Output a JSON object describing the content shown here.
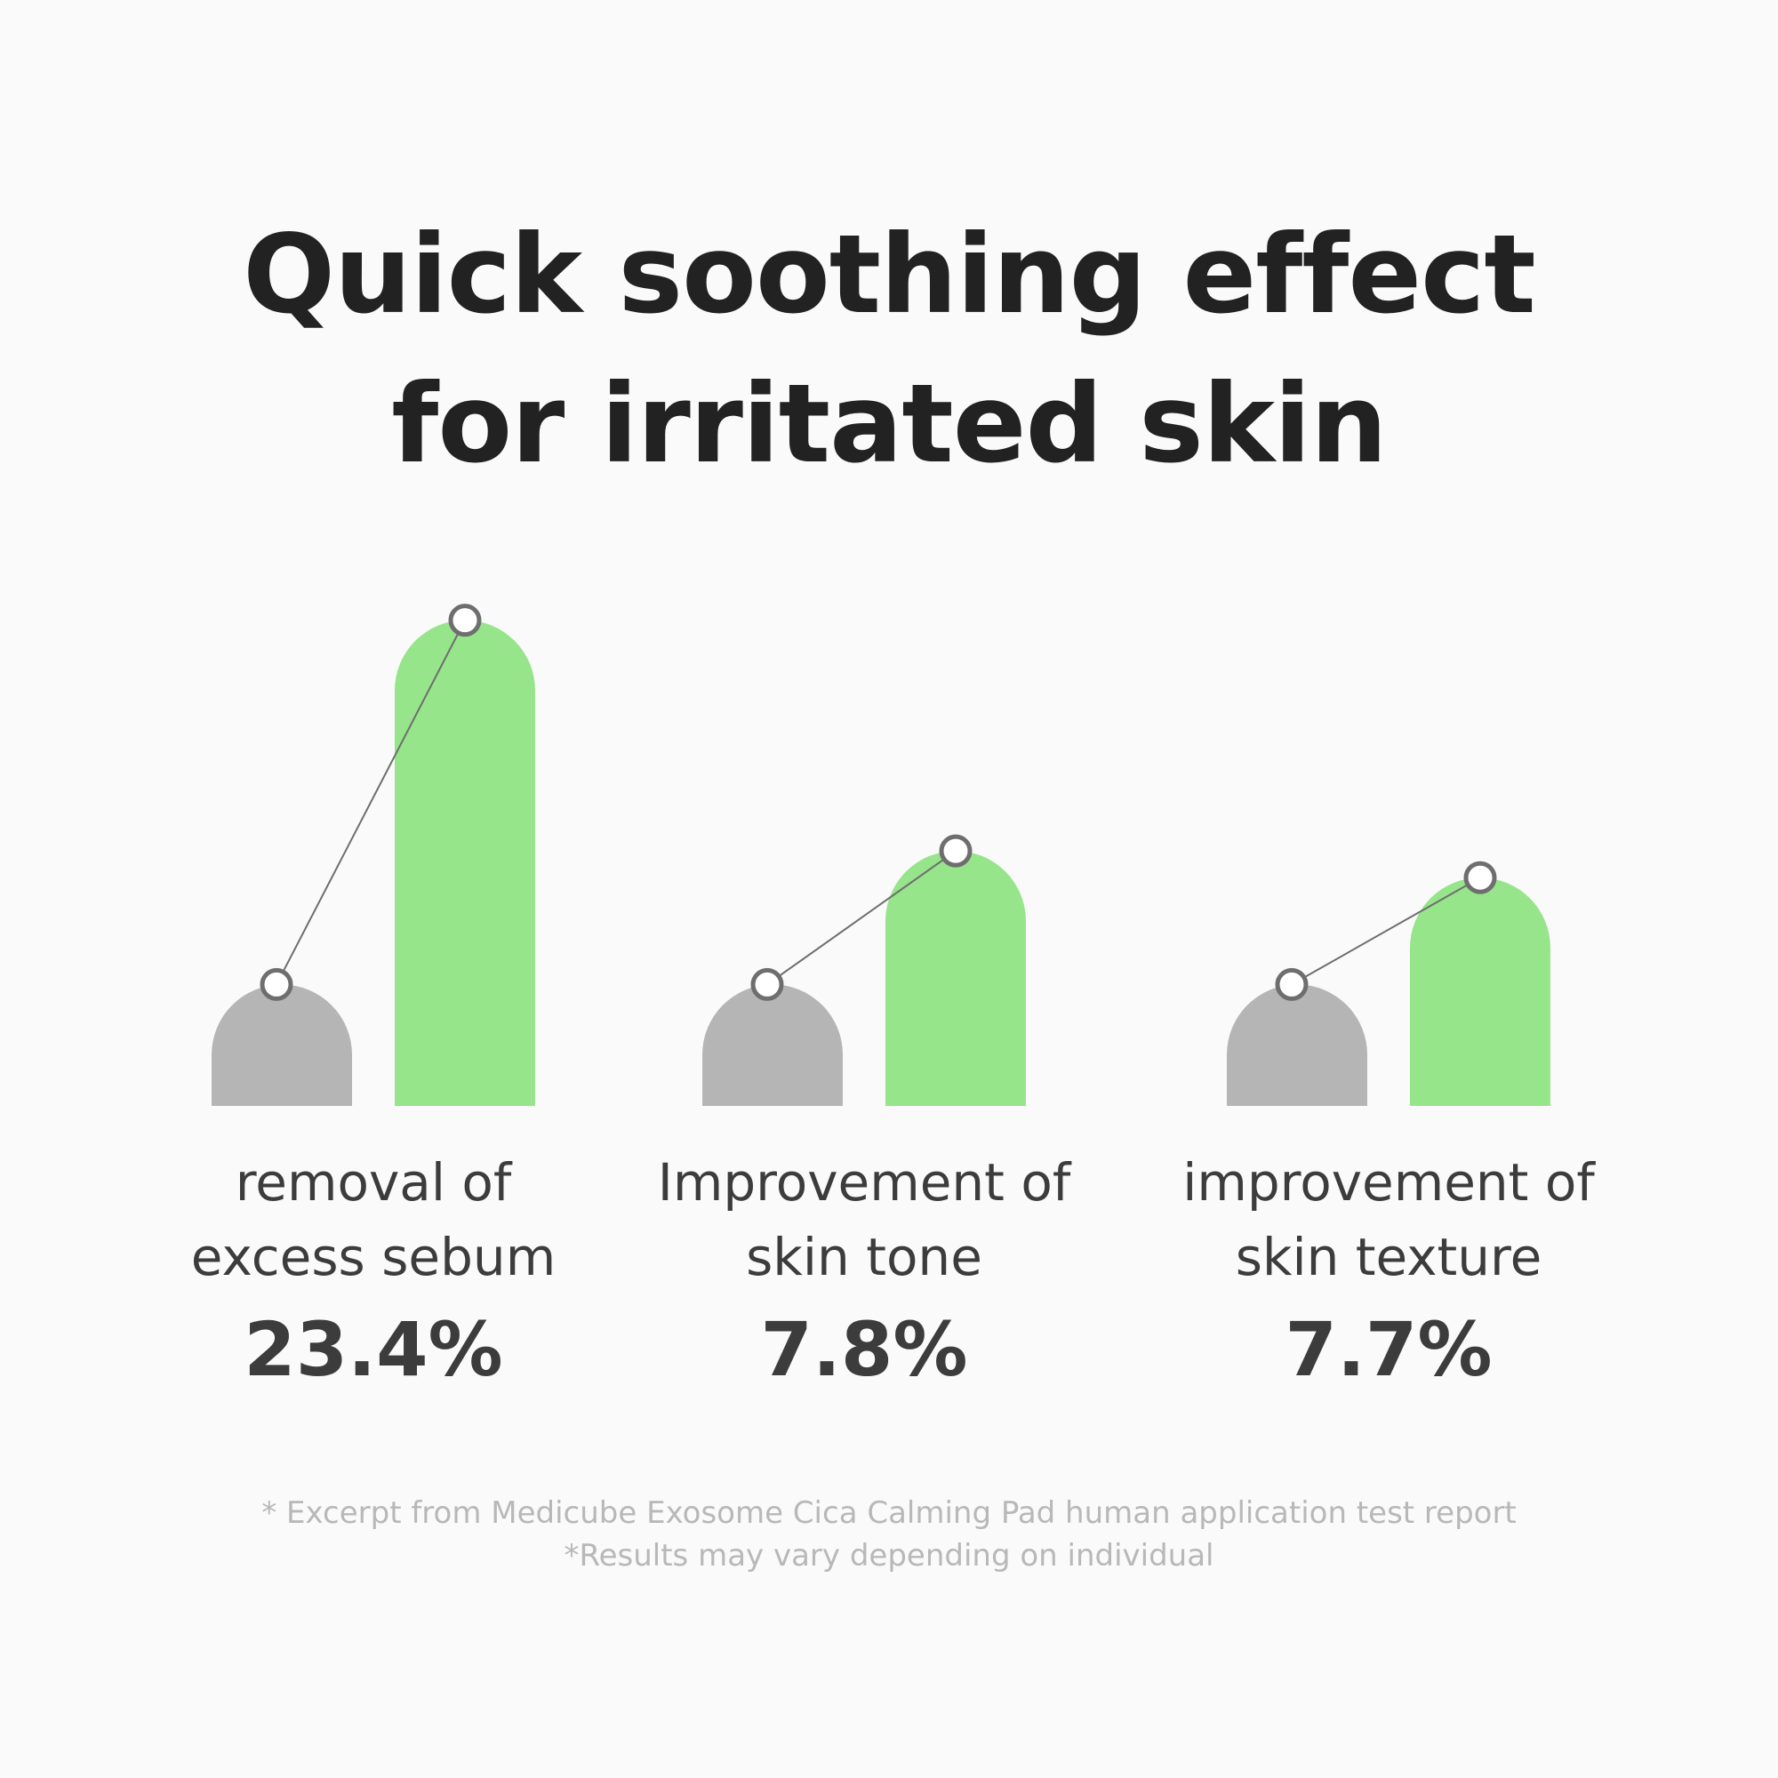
{
  "title": {
    "line1": "Quick soothing effect",
    "line2": "for irritated skin"
  },
  "chart_data": {
    "type": "bar",
    "title": "Quick soothing effect for irritated skin",
    "categories": [
      "removal of excess sebum",
      "Improvement of skin tone",
      "improvement of skin texture"
    ],
    "values_pct": [
      23.4,
      7.8,
      7.7
    ],
    "value_labels": [
      "23.4%",
      "7.8%",
      "7.7%"
    ],
    "series": [
      {
        "values": [
          1.0,
          1.0,
          1.0
        ],
        "color": "#b5b5b5"
      },
      {
        "values": [
          4.0,
          2.1,
          1.88
        ],
        "color": "#96e58a"
      }
    ],
    "ylim": [
      0,
      4.1
    ],
    "grid": false,
    "legend": "none",
    "connector_color": "#6e6e6e"
  },
  "metrics": [
    {
      "label_line1": "removal of",
      "label_line2": "excess sebum",
      "value": "23.4%"
    },
    {
      "label_line1": "Improvement of",
      "label_line2": "skin tone",
      "value": "7.8%"
    },
    {
      "label_line1": "improvement of",
      "label_line2": "skin texture",
      "value": "7.7%"
    }
  ],
  "footnote": {
    "line1": "* Excerpt from Medicube Exosome Cica Calming Pad human application test report",
    "line2": "*Results may vary depending on individual"
  }
}
